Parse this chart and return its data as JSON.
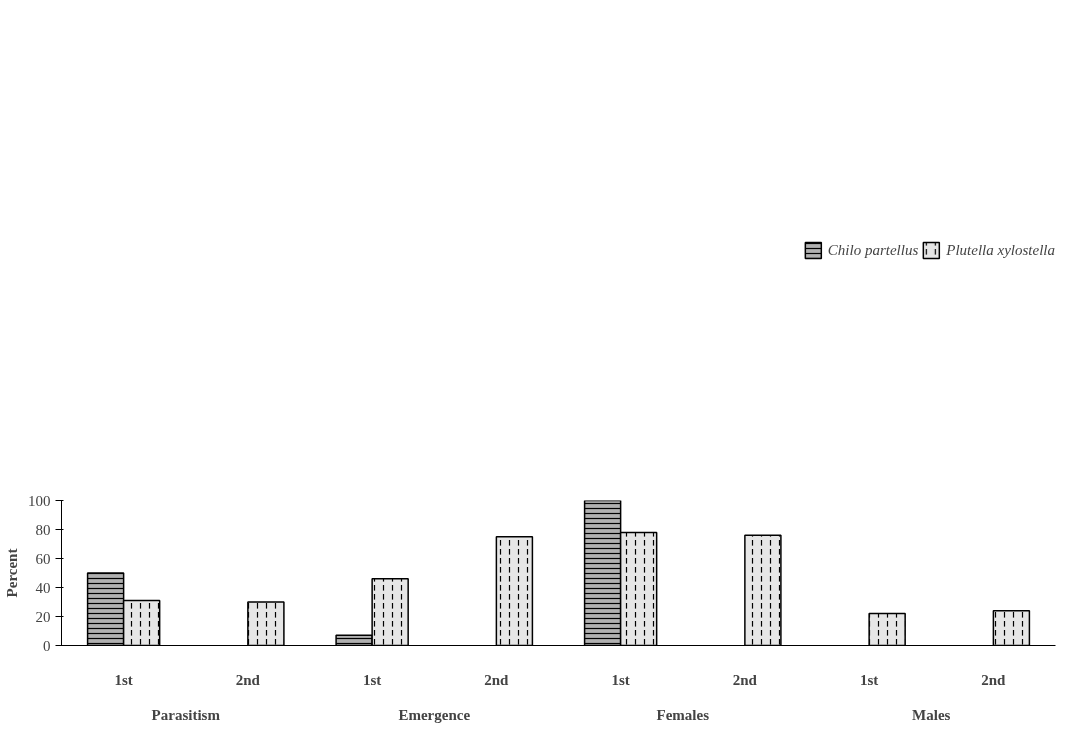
{
  "chart_data": {
    "type": "bar",
    "ylabel": "Percent",
    "categories": [
      "1st",
      "2nd",
      "1st",
      "2nd",
      "1st",
      "2nd",
      "1st",
      "2nd"
    ],
    "annotations": [
      "Parasitism",
      "Emergence",
      "Females",
      "Males"
    ],
    "series": [
      {
        "name": "Chilo partellus",
        "color": "#b0b0b0",
        "values": [
          50,
          null,
          7,
          null,
          100,
          null,
          null,
          null
        ]
      },
      {
        "name": "Plutella xylostella",
        "color": "#e6e6e6",
        "values": [
          31,
          30,
          46,
          75,
          78,
          76,
          22,
          24
        ]
      }
    ],
    "ylim": [
      0,
      100
    ],
    "yticks": [
      0,
      20,
      40,
      60,
      80,
      100
    ],
    "grid": false,
    "legend": "top"
  }
}
